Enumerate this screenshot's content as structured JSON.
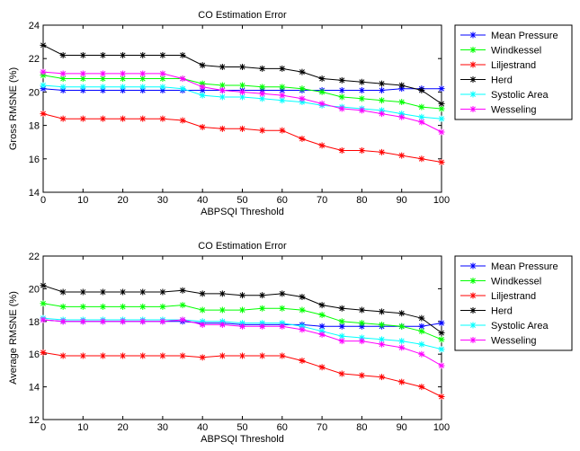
{
  "chart_data": [
    {
      "type": "line",
      "title": "CO Estimation Error",
      "xlabel": "ABPSQI Threshold",
      "ylabel": "Gross RMSNE (%)",
      "xlim": [
        0,
        100
      ],
      "ylim": [
        14,
        24
      ],
      "xticks": [
        0,
        10,
        20,
        30,
        40,
        50,
        60,
        70,
        80,
        90,
        100
      ],
      "yticks": [
        14,
        16,
        18,
        20,
        22,
        24
      ],
      "grid": false,
      "legend": "right",
      "x": [
        0,
        5,
        10,
        15,
        20,
        25,
        30,
        35,
        40,
        45,
        50,
        55,
        60,
        65,
        70,
        75,
        80,
        85,
        90,
        95,
        100
      ],
      "series": [
        {
          "name": "Mean Pressure",
          "color": "#0000ff",
          "values": [
            20.2,
            20.1,
            20.1,
            20.1,
            20.1,
            20.1,
            20.1,
            20.1,
            20.1,
            20.1,
            20.1,
            20.1,
            20.1,
            20.1,
            20.1,
            20.1,
            20.1,
            20.1,
            20.2,
            20.2,
            20.2
          ]
        },
        {
          "name": "Windkessel",
          "color": "#00ff00",
          "values": [
            21.0,
            20.8,
            20.8,
            20.8,
            20.8,
            20.8,
            20.8,
            20.8,
            20.5,
            20.4,
            20.4,
            20.3,
            20.3,
            20.2,
            20.0,
            19.7,
            19.6,
            19.5,
            19.4,
            19.1,
            19.0
          ]
        },
        {
          "name": "Liljestrand",
          "color": "#ff0000",
          "values": [
            18.7,
            18.4,
            18.4,
            18.4,
            18.4,
            18.4,
            18.4,
            18.3,
            17.9,
            17.8,
            17.8,
            17.7,
            17.7,
            17.2,
            16.8,
            16.5,
            16.5,
            16.4,
            16.2,
            16.0,
            15.8
          ]
        },
        {
          "name": "Herd",
          "color": "#000000",
          "values": [
            22.8,
            22.2,
            22.2,
            22.2,
            22.2,
            22.2,
            22.2,
            22.2,
            21.6,
            21.5,
            21.5,
            21.4,
            21.4,
            21.2,
            20.8,
            20.7,
            20.6,
            20.5,
            20.4,
            20.1,
            19.3
          ]
        },
        {
          "name": "Systolic Area",
          "color": "#00ffff",
          "values": [
            20.4,
            20.3,
            20.3,
            20.3,
            20.3,
            20.3,
            20.3,
            20.2,
            19.8,
            19.7,
            19.7,
            19.6,
            19.5,
            19.4,
            19.2,
            19.1,
            19.0,
            18.9,
            18.7,
            18.5,
            18.4
          ]
        },
        {
          "name": "Wesseling",
          "color": "#ff00ff",
          "values": [
            21.2,
            21.1,
            21.1,
            21.1,
            21.1,
            21.1,
            21.1,
            20.8,
            20.3,
            20.1,
            20.0,
            19.9,
            19.8,
            19.6,
            19.3,
            19.0,
            18.9,
            18.7,
            18.5,
            18.2,
            17.6
          ]
        }
      ]
    },
    {
      "type": "line",
      "title": "CO Estimation Error",
      "xlabel": "ABPSQI Threshold",
      "ylabel": "Average RMSNE (%)",
      "xlim": [
        0,
        100
      ],
      "ylim": [
        12,
        22
      ],
      "xticks": [
        0,
        10,
        20,
        30,
        40,
        50,
        60,
        70,
        80,
        90,
        100
      ],
      "yticks": [
        12,
        14,
        16,
        18,
        20,
        22
      ],
      "grid": false,
      "legend": "right",
      "x": [
        0,
        5,
        10,
        15,
        20,
        25,
        30,
        35,
        40,
        45,
        50,
        55,
        60,
        65,
        70,
        75,
        80,
        85,
        90,
        95,
        100
      ],
      "series": [
        {
          "name": "Mean Pressure",
          "color": "#0000ff",
          "values": [
            18.1,
            18.0,
            18.0,
            18.0,
            18.0,
            18.0,
            18.0,
            18.0,
            17.9,
            17.9,
            17.8,
            17.8,
            17.8,
            17.8,
            17.7,
            17.7,
            17.7,
            17.7,
            17.7,
            17.7,
            17.9
          ]
        },
        {
          "name": "Windkessel",
          "color": "#00ff00",
          "values": [
            19.1,
            18.9,
            18.9,
            18.9,
            18.9,
            18.9,
            18.9,
            19.0,
            18.7,
            18.7,
            18.7,
            18.8,
            18.8,
            18.7,
            18.4,
            18.0,
            17.9,
            17.8,
            17.7,
            17.4,
            16.9
          ]
        },
        {
          "name": "Liljestrand",
          "color": "#ff0000",
          "values": [
            16.1,
            15.9,
            15.9,
            15.9,
            15.9,
            15.9,
            15.9,
            15.9,
            15.8,
            15.9,
            15.9,
            15.9,
            15.9,
            15.6,
            15.2,
            14.8,
            14.7,
            14.6,
            14.3,
            14.0,
            13.4
          ]
        },
        {
          "name": "Herd",
          "color": "#000000",
          "values": [
            20.2,
            19.8,
            19.8,
            19.8,
            19.8,
            19.8,
            19.8,
            19.9,
            19.7,
            19.7,
            19.6,
            19.6,
            19.7,
            19.5,
            19.0,
            18.8,
            18.7,
            18.6,
            18.5,
            18.2,
            17.3
          ]
        },
        {
          "name": "Systolic Area",
          "color": "#00ffff",
          "values": [
            18.2,
            18.1,
            18.1,
            18.1,
            18.1,
            18.1,
            18.1,
            18.1,
            18.0,
            18.0,
            17.9,
            17.9,
            17.9,
            17.7,
            17.4,
            17.1,
            17.0,
            16.9,
            16.8,
            16.6,
            16.3
          ]
        },
        {
          "name": "Wesseling",
          "color": "#ff00ff",
          "values": [
            18.1,
            18.0,
            18.0,
            18.0,
            18.0,
            18.0,
            18.0,
            18.1,
            17.8,
            17.8,
            17.7,
            17.7,
            17.7,
            17.5,
            17.2,
            16.8,
            16.8,
            16.6,
            16.4,
            16.0,
            15.3
          ]
        }
      ]
    }
  ]
}
